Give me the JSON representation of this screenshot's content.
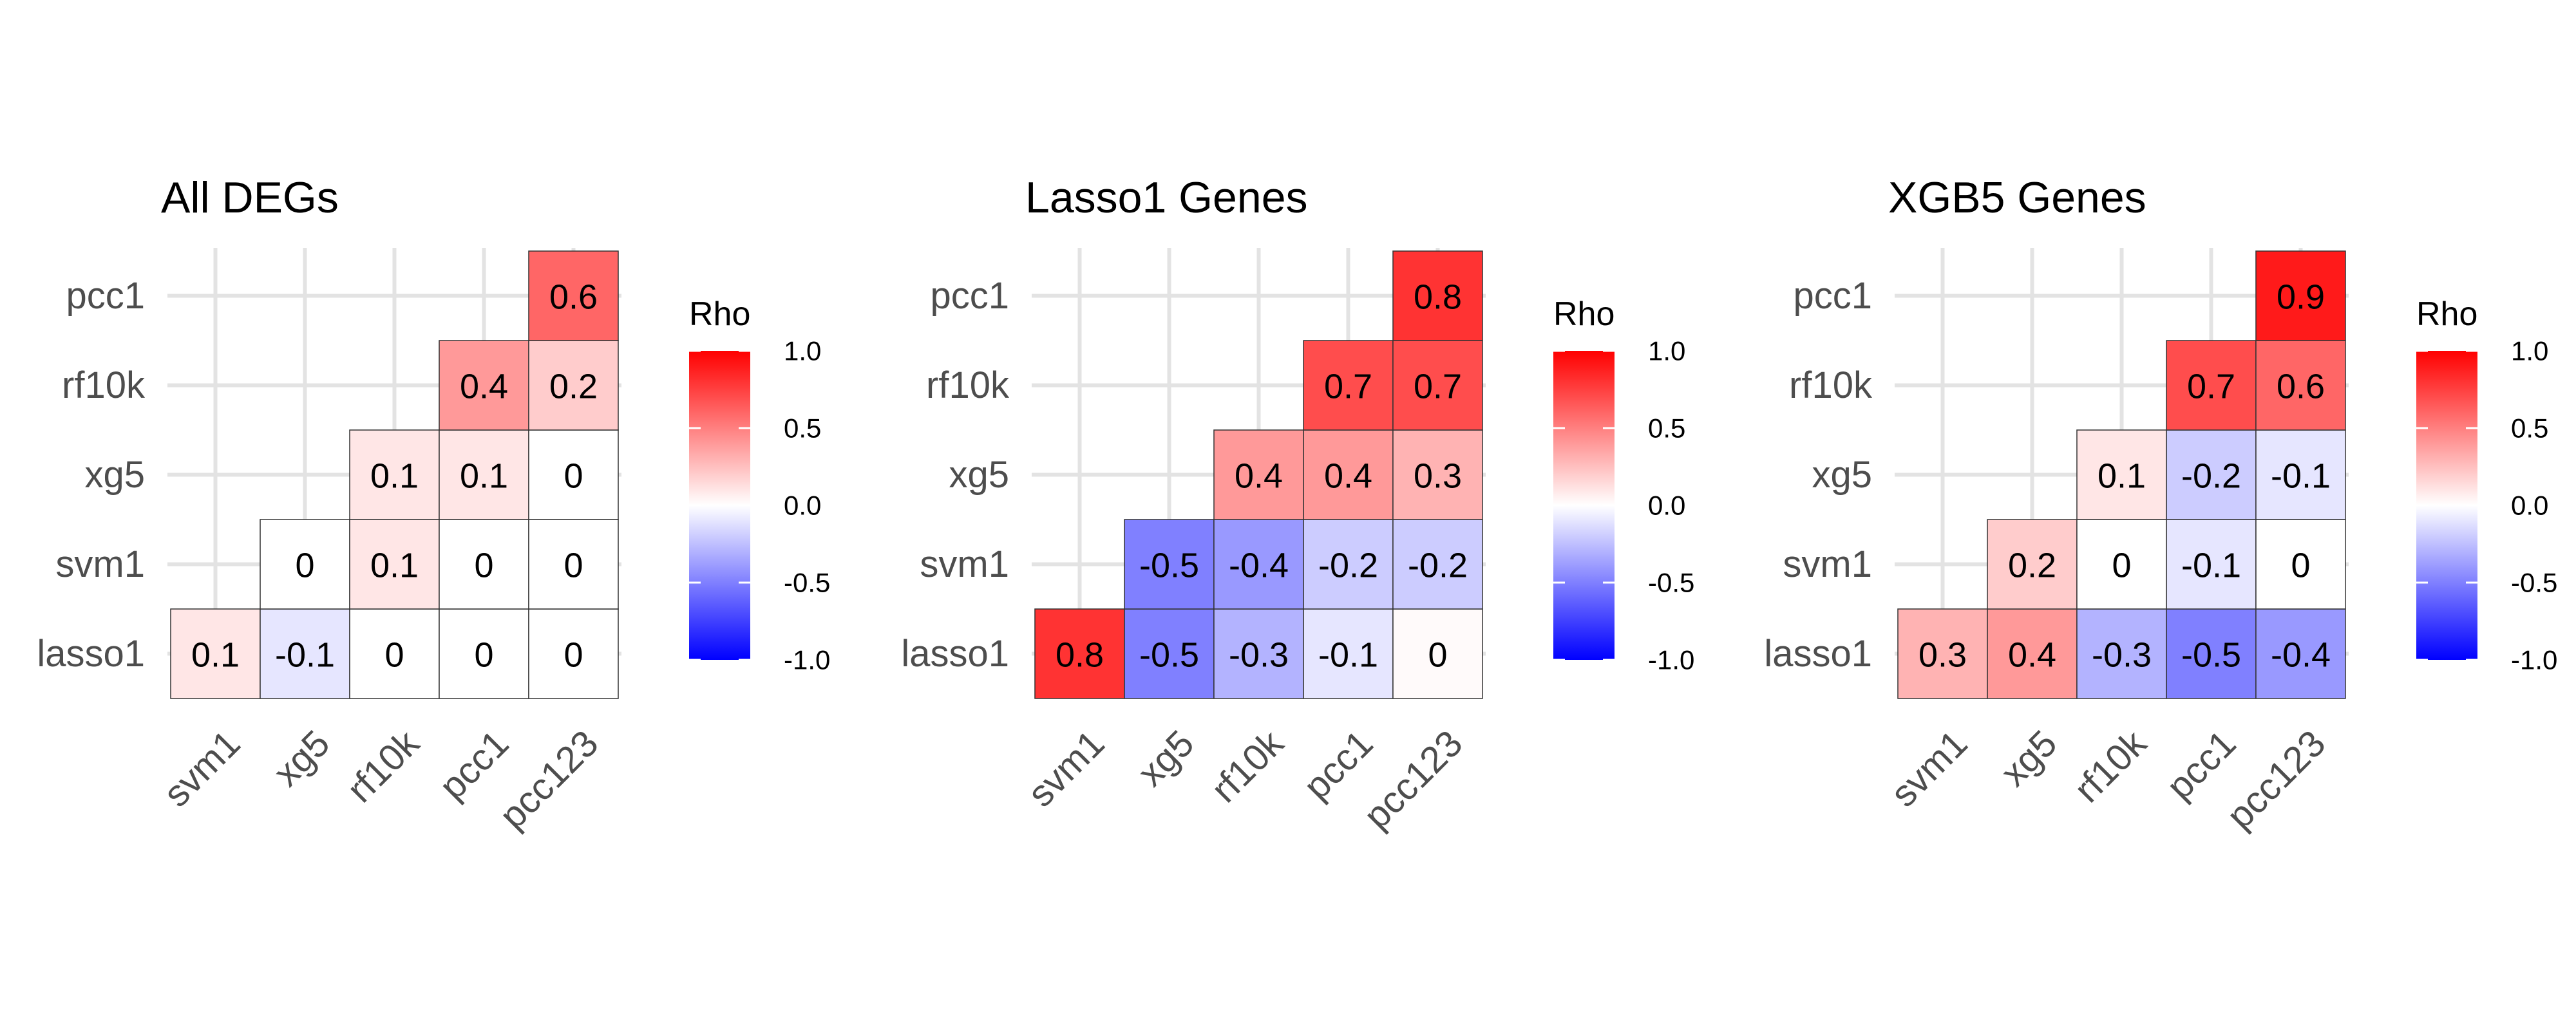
{
  "chart_data": [
    {
      "type": "heatmap",
      "title": "All DEGs",
      "x_categories": [
        "svm1",
        "xg5",
        "rf10k",
        "pcc1",
        "pcc123"
      ],
      "y_categories": [
        "lasso1",
        "svm1",
        "xg5",
        "rf10k",
        "pcc1"
      ],
      "cells": [
        {
          "x": "svm1",
          "y": "lasso1",
          "value": 0.1,
          "label": "0.1"
        },
        {
          "x": "xg5",
          "y": "lasso1",
          "value": -0.1,
          "label": "-0.1"
        },
        {
          "x": "rf10k",
          "y": "lasso1",
          "value": 0,
          "label": "0"
        },
        {
          "x": "pcc1",
          "y": "lasso1",
          "value": 0,
          "label": "0"
        },
        {
          "x": "pcc123",
          "y": "lasso1",
          "value": 0,
          "label": "0"
        },
        {
          "x": "xg5",
          "y": "svm1",
          "value": 0,
          "label": "0"
        },
        {
          "x": "rf10k",
          "y": "svm1",
          "value": 0.1,
          "label": "0.1"
        },
        {
          "x": "pcc1",
          "y": "svm1",
          "value": 0,
          "label": "0"
        },
        {
          "x": "pcc123",
          "y": "svm1",
          "value": 0,
          "label": "0"
        },
        {
          "x": "rf10k",
          "y": "xg5",
          "value": 0.1,
          "label": "0.1"
        },
        {
          "x": "pcc1",
          "y": "xg5",
          "value": 0.1,
          "label": "0.1"
        },
        {
          "x": "pcc123",
          "y": "xg5",
          "value": 0,
          "label": "0"
        },
        {
          "x": "pcc1",
          "y": "rf10k",
          "value": 0.4,
          "label": "0.4"
        },
        {
          "x": "pcc123",
          "y": "rf10k",
          "value": 0.2,
          "label": "0.2"
        },
        {
          "x": "pcc123",
          "y": "pcc1",
          "value": 0.6,
          "label": "0.6"
        }
      ],
      "legend": {
        "title": "Rho",
        "ticks": [
          "1.0",
          "0.5",
          "0.0",
          "-0.5",
          "-1.0"
        ],
        "tick_values": [
          1.0,
          0.5,
          0.0,
          -0.5,
          -1.0
        ],
        "range": [
          -1,
          1
        ],
        "position": "right"
      },
      "grid": true
    },
    {
      "type": "heatmap",
      "title": "Lasso1 Genes",
      "x_categories": [
        "svm1",
        "xg5",
        "rf10k",
        "pcc1",
        "pcc123"
      ],
      "y_categories": [
        "lasso1",
        "svm1",
        "xg5",
        "rf10k",
        "pcc1"
      ],
      "cells": [
        {
          "x": "svm1",
          "y": "lasso1",
          "value": 0.8,
          "label": "0.8"
        },
        {
          "x": "xg5",
          "y": "lasso1",
          "value": -0.5,
          "label": "-0.5"
        },
        {
          "x": "rf10k",
          "y": "lasso1",
          "value": -0.3,
          "label": "-0.3"
        },
        {
          "x": "pcc1",
          "y": "lasso1",
          "value": -0.1,
          "label": "-0.1"
        },
        {
          "x": "pcc123",
          "y": "lasso1",
          "value": 0.02,
          "label": "0"
        },
        {
          "x": "xg5",
          "y": "svm1",
          "value": -0.5,
          "label": "-0.5"
        },
        {
          "x": "rf10k",
          "y": "svm1",
          "value": -0.4,
          "label": "-0.4"
        },
        {
          "x": "pcc1",
          "y": "svm1",
          "value": -0.2,
          "label": "-0.2"
        },
        {
          "x": "pcc123",
          "y": "svm1",
          "value": -0.2,
          "label": "-0.2"
        },
        {
          "x": "rf10k",
          "y": "xg5",
          "value": 0.4,
          "label": "0.4"
        },
        {
          "x": "pcc1",
          "y": "xg5",
          "value": 0.4,
          "label": "0.4"
        },
        {
          "x": "pcc123",
          "y": "xg5",
          "value": 0.3,
          "label": "0.3"
        },
        {
          "x": "pcc1",
          "y": "rf10k",
          "value": 0.7,
          "label": "0.7"
        },
        {
          "x": "pcc123",
          "y": "rf10k",
          "value": 0.7,
          "label": "0.7"
        },
        {
          "x": "pcc123",
          "y": "pcc1",
          "value": 0.8,
          "label": "0.8"
        }
      ],
      "legend": {
        "title": "Rho",
        "ticks": [
          "1.0",
          "0.5",
          "0.0",
          "-0.5",
          "-1.0"
        ],
        "tick_values": [
          1.0,
          0.5,
          0.0,
          -0.5,
          -1.0
        ],
        "range": [
          -1,
          1
        ],
        "position": "right"
      },
      "grid": true
    },
    {
      "type": "heatmap",
      "title": "XGB5 Genes",
      "x_categories": [
        "svm1",
        "xg5",
        "rf10k",
        "pcc1",
        "pcc123"
      ],
      "y_categories": [
        "lasso1",
        "svm1",
        "xg5",
        "rf10k",
        "pcc1"
      ],
      "cells": [
        {
          "x": "svm1",
          "y": "lasso1",
          "value": 0.3,
          "label": "0.3"
        },
        {
          "x": "xg5",
          "y": "lasso1",
          "value": 0.4,
          "label": "0.4"
        },
        {
          "x": "rf10k",
          "y": "lasso1",
          "value": -0.3,
          "label": "-0.3"
        },
        {
          "x": "pcc1",
          "y": "lasso1",
          "value": -0.5,
          "label": "-0.5"
        },
        {
          "x": "pcc123",
          "y": "lasso1",
          "value": -0.4,
          "label": "-0.4"
        },
        {
          "x": "xg5",
          "y": "svm1",
          "value": 0.2,
          "label": "0.2"
        },
        {
          "x": "rf10k",
          "y": "svm1",
          "value": 0,
          "label": "0"
        },
        {
          "x": "pcc1",
          "y": "svm1",
          "value": -0.1,
          "label": "-0.1"
        },
        {
          "x": "pcc123",
          "y": "svm1",
          "value": 0,
          "label": "0"
        },
        {
          "x": "rf10k",
          "y": "xg5",
          "value": 0.1,
          "label": "0.1"
        },
        {
          "x": "pcc1",
          "y": "xg5",
          "value": -0.2,
          "label": "-0.2"
        },
        {
          "x": "pcc123",
          "y": "xg5",
          "value": -0.1,
          "label": "-0.1"
        },
        {
          "x": "pcc1",
          "y": "rf10k",
          "value": 0.7,
          "label": "0.7"
        },
        {
          "x": "pcc123",
          "y": "rf10k",
          "value": 0.6,
          "label": "0.6"
        },
        {
          "x": "pcc123",
          "y": "pcc1",
          "value": 0.9,
          "label": "0.9"
        }
      ],
      "legend": {
        "title": "Rho",
        "ticks": [
          "1.0",
          "0.5",
          "0.0",
          "-0.5",
          "-1.0"
        ],
        "tick_values": [
          1.0,
          0.5,
          0.0,
          -0.5,
          -1.0
        ],
        "range": [
          -1,
          1
        ],
        "position": "right"
      },
      "grid": true
    }
  ],
  "colors": {
    "low": "#0000ff",
    "mid": "#ffffff",
    "high": "#ff0000",
    "grid": "#e3e3e3",
    "tick_text": "#4d4d4d"
  }
}
